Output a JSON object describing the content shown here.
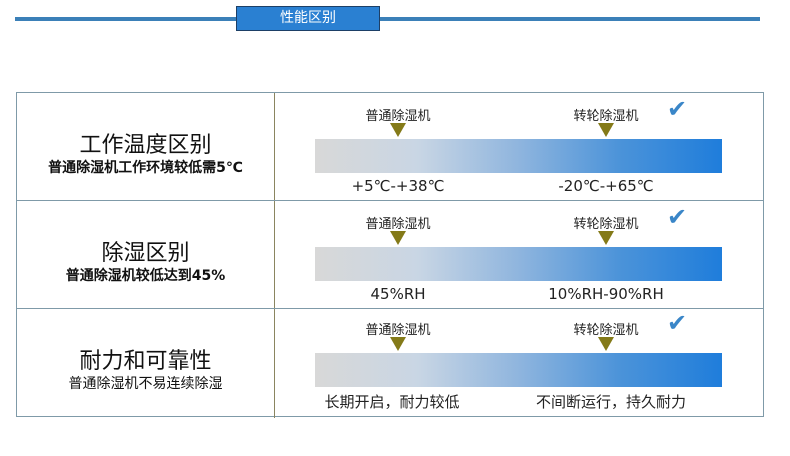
{
  "header": {
    "title": "性能区别"
  },
  "rows": [
    {
      "title": "工作温度区别",
      "subtitle": "普通除湿机工作环境较低需5℃",
      "label_a": "普通除湿机",
      "label_b": "转轮除湿机",
      "value_a": "+5℃-+38℃",
      "value_b": "-20℃-+65℃"
    },
    {
      "title": "除湿区别",
      "subtitle": "普通除湿机较低达到45%",
      "label_a": "普通除湿机",
      "label_b": "转轮除湿机",
      "value_a": "45%RH",
      "value_b": "10%RH-90%RH"
    },
    {
      "title": "耐力和可靠性",
      "subtitle": "普通除湿机不易连续除湿",
      "label_a": "普通除湿机",
      "label_b": "转轮除湿机",
      "value_a": "长期开启，耐力较低",
      "value_b": "不间断运行，持久耐力"
    }
  ],
  "icons": {
    "check": "checkmark-icon",
    "marker": "triangle-down-icon"
  },
  "colors": {
    "accent": "#2a80d2",
    "marker": "#847a18",
    "check": "#3a86c8"
  }
}
